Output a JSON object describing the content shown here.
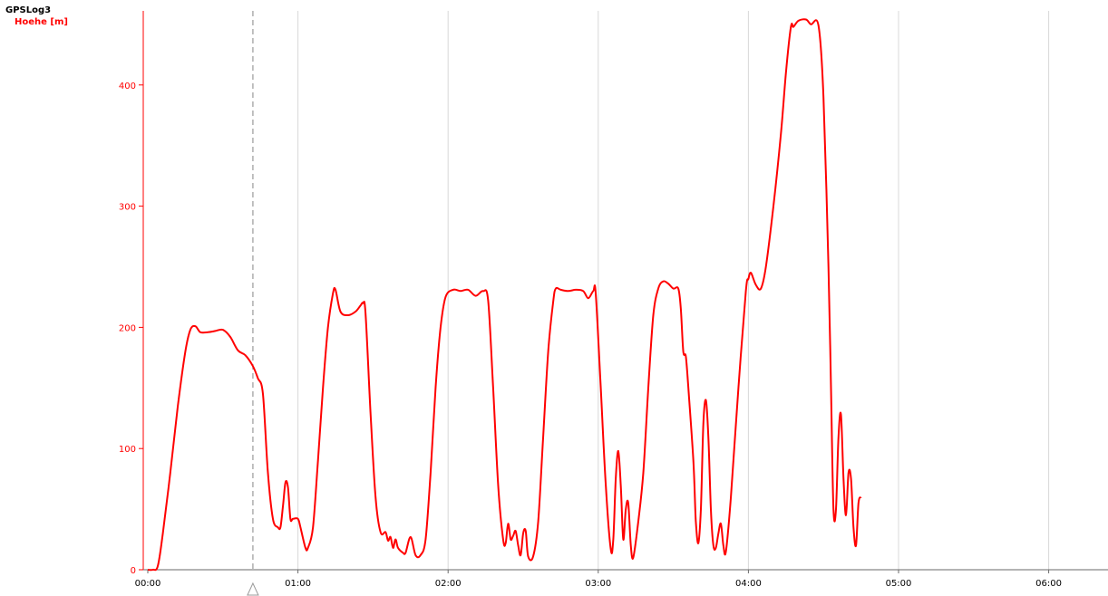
{
  "header": {
    "log_name": "GPSLog3",
    "series_label": "Hoehe [m]"
  },
  "colors": {
    "series": "#ff0000",
    "grid": "#d8d8d8",
    "cursor": "#9a9a9a",
    "axis_x": "#6a6a6a"
  },
  "chart_data": {
    "type": "line",
    "xlabel": "",
    "ylabel": "Hoehe [m]",
    "x_unit": "hh:mm",
    "xlim": [
      "00:00",
      "06:24"
    ],
    "ylim": [
      0,
      460
    ],
    "grid": "vertical gridlines at hours",
    "x_ticks": [
      "00:00",
      "01:00",
      "02:00",
      "03:00",
      "04:00",
      "05:00",
      "06:00"
    ],
    "y_ticks": [
      0,
      100,
      200,
      300,
      400
    ],
    "cursor_time": "00:42",
    "series": [
      {
        "name": "Hoehe [m]",
        "color": "#ff0000",
        "points": [
          [
            "00:00",
            0
          ],
          [
            "00:02",
            0
          ],
          [
            "00:04",
            3
          ],
          [
            "00:06",
            30
          ],
          [
            "00:09",
            80
          ],
          [
            "00:12",
            135
          ],
          [
            "00:15",
            180
          ],
          [
            "00:17",
            198
          ],
          [
            "00:19",
            201
          ],
          [
            "00:21",
            196
          ],
          [
            "00:24",
            196
          ],
          [
            "00:27",
            197
          ],
          [
            "00:30",
            198
          ],
          [
            "00:33",
            192
          ],
          [
            "00:36",
            181
          ],
          [
            "00:39",
            177
          ],
          [
            "00:42",
            168
          ],
          [
            "00:44",
            158
          ],
          [
            "00:46",
            145
          ],
          [
            "00:48",
            80
          ],
          [
            "00:50",
            42
          ],
          [
            "00:52",
            35
          ],
          [
            "00:53",
            35
          ],
          [
            "00:54",
            52
          ],
          [
            "00:55",
            72
          ],
          [
            "00:56",
            68
          ],
          [
            "00:57",
            42
          ],
          [
            "00:58",
            42
          ],
          [
            "01:00",
            42
          ],
          [
            "01:01",
            35
          ],
          [
            "01:03",
            18
          ],
          [
            "01:04",
            18
          ],
          [
            "01:06",
            35
          ],
          [
            "01:08",
            90
          ],
          [
            "01:10",
            150
          ],
          [
            "01:12",
            200
          ],
          [
            "01:14",
            228
          ],
          [
            "01:15",
            231
          ],
          [
            "01:17",
            213
          ],
          [
            "01:20",
            210
          ],
          [
            "01:23",
            213
          ],
          [
            "01:25",
            218
          ],
          [
            "01:26",
            220
          ],
          [
            "01:27",
            212
          ],
          [
            "01:29",
            130
          ],
          [
            "01:31",
            60
          ],
          [
            "01:33",
            31
          ],
          [
            "01:35",
            31
          ],
          [
            "01:36",
            24
          ],
          [
            "01:37",
            27
          ],
          [
            "01:38",
            18
          ],
          [
            "01:39",
            25
          ],
          [
            "01:40",
            18
          ],
          [
            "01:42",
            14
          ],
          [
            "01:43",
            14
          ],
          [
            "01:45",
            27
          ],
          [
            "01:47",
            12
          ],
          [
            "01:49",
            12
          ],
          [
            "01:51",
            25
          ],
          [
            "01:53",
            80
          ],
          [
            "01:55",
            150
          ],
          [
            "01:57",
            200
          ],
          [
            "01:59",
            225
          ],
          [
            "02:02",
            231
          ],
          [
            "02:05",
            230
          ],
          [
            "02:08",
            231
          ],
          [
            "02:11",
            226
          ],
          [
            "02:14",
            230
          ],
          [
            "02:16",
            222
          ],
          [
            "02:18",
            150
          ],
          [
            "02:20",
            70
          ],
          [
            "02:22",
            25
          ],
          [
            "02:23",
            22
          ],
          [
            "02:24",
            38
          ],
          [
            "02:25",
            25
          ],
          [
            "02:26",
            28
          ],
          [
            "02:27",
            32
          ],
          [
            "02:28",
            20
          ],
          [
            "02:29",
            12
          ],
          [
            "02:30",
            30
          ],
          [
            "02:31",
            32
          ],
          [
            "02:32",
            11
          ],
          [
            "02:34",
            11
          ],
          [
            "02:36",
            40
          ],
          [
            "02:38",
            110
          ],
          [
            "02:40",
            180
          ],
          [
            "02:42",
            221
          ],
          [
            "02:43",
            232
          ],
          [
            "02:45",
            231
          ],
          [
            "02:48",
            230
          ],
          [
            "02:51",
            231
          ],
          [
            "02:54",
            230
          ],
          [
            "02:56",
            224
          ],
          [
            "02:58",
            230
          ],
          [
            "02:59",
            228
          ],
          [
            "03:01",
            150
          ],
          [
            "03:03",
            70
          ],
          [
            "03:05",
            17
          ],
          [
            "03:06",
            25
          ],
          [
            "03:07",
            75
          ],
          [
            "03:08",
            98
          ],
          [
            "03:09",
            70
          ],
          [
            "03:10",
            25
          ],
          [
            "03:11",
            50
          ],
          [
            "03:12",
            55
          ],
          [
            "03:13",
            20
          ],
          [
            "03:14",
            10
          ],
          [
            "03:16",
            40
          ],
          [
            "03:18",
            80
          ],
          [
            "03:20",
            150
          ],
          [
            "03:22",
            210
          ],
          [
            "03:24",
            232
          ],
          [
            "03:26",
            238
          ],
          [
            "03:28",
            236
          ],
          [
            "03:30",
            232
          ],
          [
            "03:32",
            232
          ],
          [
            "03:33",
            215
          ],
          [
            "03:34",
            180
          ],
          [
            "03:35",
            176
          ],
          [
            "03:36",
            150
          ],
          [
            "03:38",
            90
          ],
          [
            "03:39",
            40
          ],
          [
            "03:40",
            22
          ],
          [
            "03:41",
            50
          ],
          [
            "03:42",
            120
          ],
          [
            "03:43",
            140
          ],
          [
            "03:44",
            110
          ],
          [
            "03:45",
            50
          ],
          [
            "03:46",
            20
          ],
          [
            "03:47",
            18
          ],
          [
            "03:48",
            30
          ],
          [
            "03:49",
            38
          ],
          [
            "03:50",
            20
          ],
          [
            "03:51",
            15
          ],
          [
            "03:53",
            60
          ],
          [
            "03:56",
            150
          ],
          [
            "03:59",
            230
          ],
          [
            "04:00",
            240
          ],
          [
            "04:01",
            245
          ],
          [
            "04:03",
            235
          ],
          [
            "04:05",
            232
          ],
          [
            "04:07",
            250
          ],
          [
            "04:10",
            300
          ],
          [
            "04:13",
            360
          ],
          [
            "04:15",
            410
          ],
          [
            "04:17",
            448
          ],
          [
            "04:18",
            448
          ],
          [
            "04:20",
            453
          ],
          [
            "04:23",
            454
          ],
          [
            "04:25",
            450
          ],
          [
            "04:28",
            449
          ],
          [
            "04:30",
            390
          ],
          [
            "04:32",
            250
          ],
          [
            "04:33",
            150
          ],
          [
            "04:34",
            50
          ],
          [
            "04:35",
            50
          ],
          [
            "04:36",
            110
          ],
          [
            "04:37",
            128
          ],
          [
            "04:38",
            75
          ],
          [
            "04:39",
            45
          ],
          [
            "04:40",
            80
          ],
          [
            "04:41",
            75
          ],
          [
            "04:42",
            35
          ],
          [
            "04:43",
            20
          ],
          [
            "04:44",
            55
          ],
          [
            "04:45",
            60
          ]
        ]
      }
    ]
  }
}
